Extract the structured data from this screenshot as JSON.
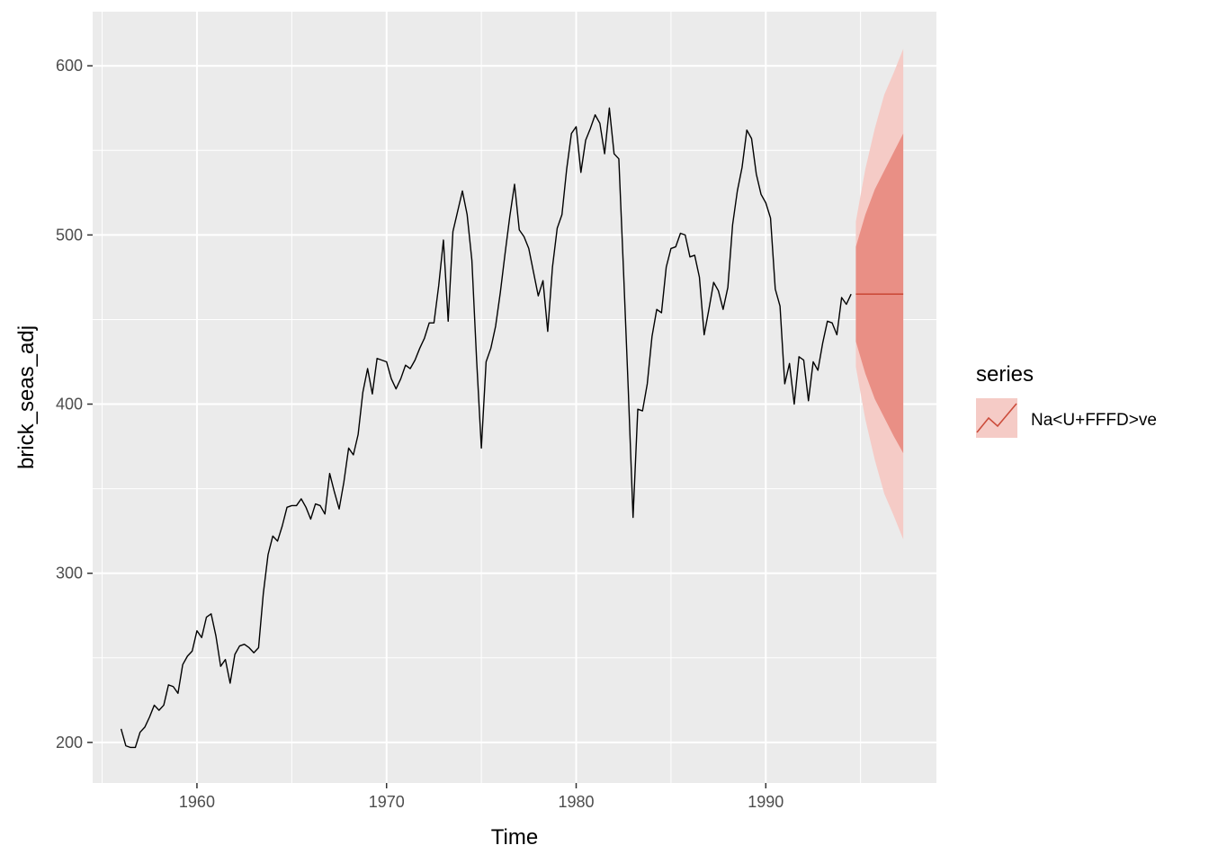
{
  "chart_data": {
    "type": "line",
    "title": "",
    "xlabel": "Time",
    "ylabel": "brick_seas_adj",
    "xlim": [
      1954.5,
      1999
    ],
    "ylim": [
      176,
      632
    ],
    "x_ticks": [
      1960,
      1970,
      1980,
      1990
    ],
    "y_ticks": [
      200,
      300,
      400,
      500,
      600
    ],
    "x_tick_labels": [
      "1960",
      "1970",
      "1980",
      "1990"
    ],
    "y_tick_labels": [
      "200",
      "300",
      "400",
      "500",
      "600"
    ],
    "grid": true,
    "background": "#ebebeb",
    "legend": {
      "title": "series",
      "position": "right",
      "entries": [
        "Na<U+FFFD>ve"
      ]
    },
    "history": {
      "start": 1956.0,
      "frequency": 4,
      "color": "#000000",
      "values": [
        208,
        198,
        197,
        197,
        206,
        209,
        215,
        222,
        219,
        222,
        234,
        233,
        229,
        246,
        251,
        254,
        266,
        262,
        274,
        276,
        263,
        245,
        249,
        235,
        252,
        257,
        258,
        256,
        253,
        256,
        288,
        311,
        322,
        319,
        328,
        339,
        340,
        340,
        344,
        339,
        332,
        341,
        340,
        335,
        359,
        348,
        338,
        354,
        374,
        370,
        382,
        407,
        421,
        406,
        427,
        426,
        425,
        415,
        409,
        415,
        423,
        421,
        426,
        433,
        439,
        448,
        448,
        470,
        497,
        449,
        502,
        514,
        526,
        512,
        485,
        426,
        374,
        425,
        433,
        446,
        466,
        489,
        511,
        530,
        503,
        499,
        492,
        478,
        464,
        473,
        443,
        481,
        504,
        512,
        539,
        560,
        564,
        537,
        556,
        563,
        571,
        566,
        548,
        575,
        548,
        545,
        478,
        408,
        333,
        397,
        396,
        412,
        440,
        456,
        454,
        481,
        492,
        493,
        501,
        500,
        487,
        488,
        475,
        441,
        456,
        472,
        467,
        456,
        469,
        506,
        526,
        540,
        562,
        557,
        536,
        524,
        519,
        510,
        468,
        458,
        412,
        424,
        400,
        428,
        426,
        402,
        425,
        420,
        436,
        449,
        448,
        441,
        463,
        459,
        465
      ]
    },
    "forecast": {
      "name": "Na<U+FFFD>ve",
      "color": "#cc4c3b",
      "x": [
        1994.75,
        1995.25,
        1995.75,
        1996.25,
        1996.75,
        1997.25
      ],
      "mean": [
        465,
        465,
        465,
        465,
        465,
        465
      ],
      "lo80": [
        437,
        418,
        403,
        392,
        381,
        371
      ],
      "hi80": [
        493,
        512,
        527,
        538,
        549,
        560
      ],
      "lo95": [
        422,
        391,
        367,
        347,
        334,
        320
      ],
      "hi95": [
        508,
        539,
        563,
        583,
        596,
        610
      ],
      "fill80": "#e98f85",
      "fill95": "#f5cbc6"
    }
  }
}
